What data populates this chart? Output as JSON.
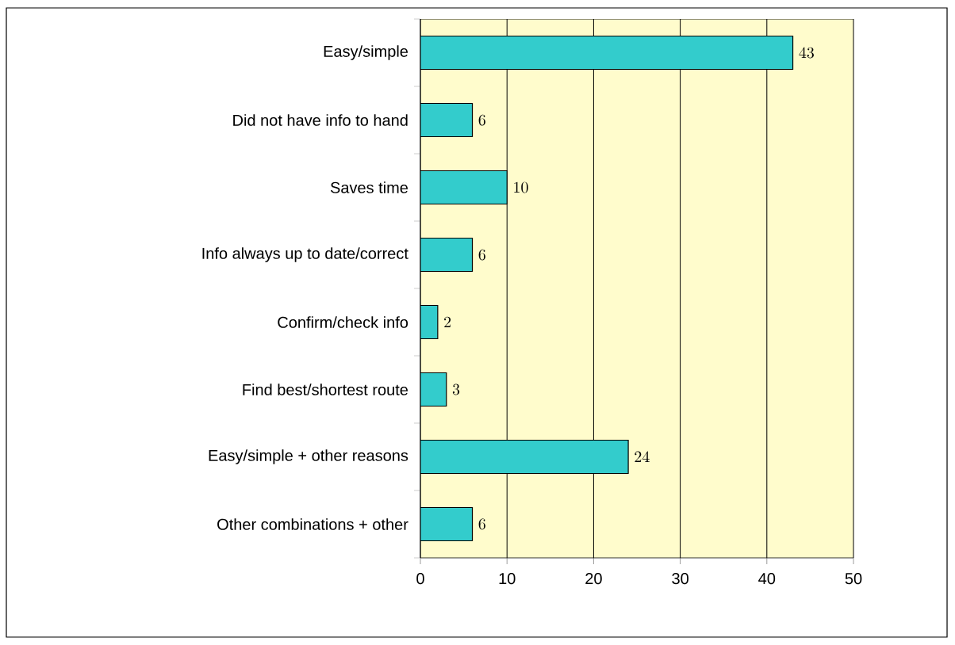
{
  "chart_data": {
    "type": "bar",
    "orientation": "horizontal",
    "categories": [
      "Easy/simple",
      "Did not have info to hand",
      "Saves time",
      "Info always up to date/correct",
      "Confirm/check info",
      "Find best/shortest route",
      "Easy/simple + other reasons",
      "Other combinations + other"
    ],
    "values": [
      43,
      6,
      10,
      6,
      2,
      3,
      24,
      6
    ],
    "color": "#33cccc",
    "xlim": [
      0,
      50
    ],
    "xticks": [
      0,
      10,
      20,
      30,
      40,
      50
    ],
    "grid": "x",
    "data_labels": true
  }
}
